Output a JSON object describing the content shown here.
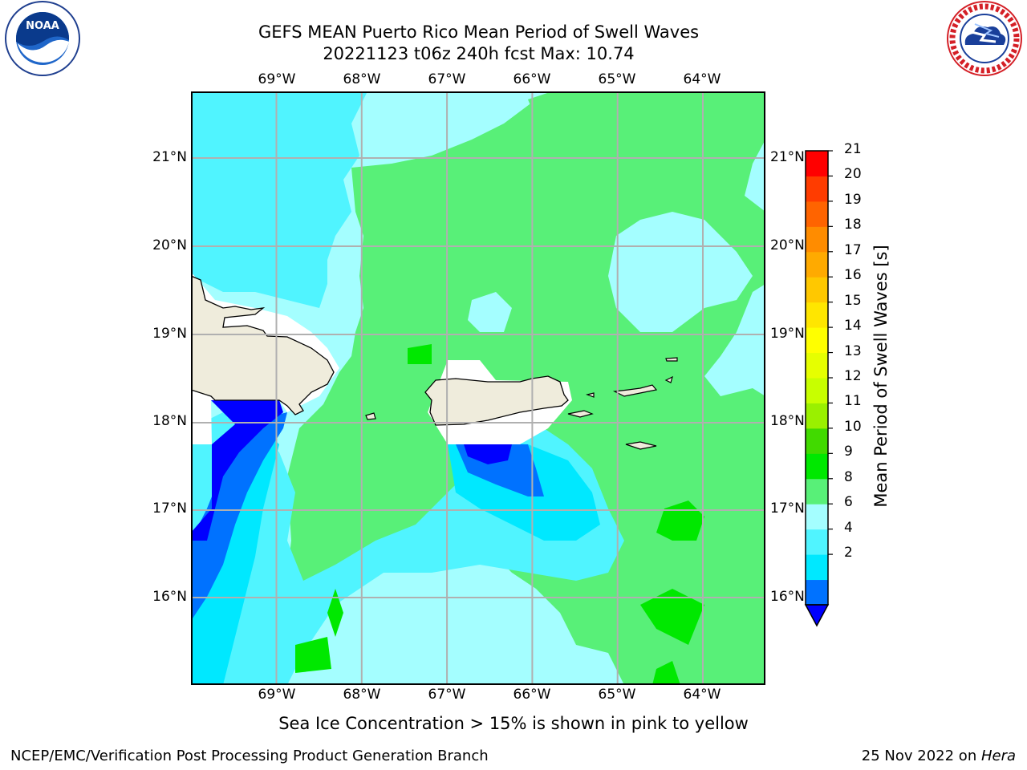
{
  "header": {
    "title_line1": "GEFS MEAN Puerto Rico Mean Period of Swell Waves",
    "title_line2": "20221123 t06z 240h fcst   Max: 10.74"
  },
  "logos": {
    "left": "NOAA",
    "left_ring_text": "NATIONAL OCEANIC AND ATMOSPHERIC ADMINISTRATION · U.S. DEPARTMENT OF COMMERCE",
    "right_ring_text": "NATIONAL WEATHER SERVICE"
  },
  "map": {
    "lon_labels": [
      "69°W",
      "68°W",
      "67°W",
      "66°W",
      "65°W",
      "64°W"
    ],
    "lat_labels": [
      "21°N",
      "20°N",
      "19°N",
      "18°N",
      "17°N",
      "16°N"
    ],
    "grid": true,
    "land_color": "#efecdc",
    "coastline_color": "#000000"
  },
  "colorbar": {
    "label": "Mean Period of Swell Waves [s]",
    "ticks": [
      "21",
      "20",
      "19",
      "18",
      "17",
      "16",
      "15",
      "14",
      "13",
      "12",
      "11",
      "10",
      "9",
      "8",
      "6",
      "4",
      "2"
    ],
    "colors": [
      "#0000ff",
      "#0072ff",
      "#00e8ff",
      "#50f4ff",
      "#a4feff",
      "#58f078",
      "#00e800",
      "#41da00",
      "#9af000",
      "#c8ff00",
      "#e6ff00",
      "#ffff00",
      "#ffe600",
      "#ffc800",
      "#ffaa00",
      "#ff8c00",
      "#ff6400",
      "#ff3c00",
      "#ff0000"
    ]
  },
  "footer": {
    "note": "Sea Ice Concentration > 15% is shown in pink to yellow",
    "left": "NCEP/EMC/Verification Post Processing Product Generation Branch",
    "right_prefix": "25 Nov 2022 on ",
    "right_italic": "Hera"
  }
}
